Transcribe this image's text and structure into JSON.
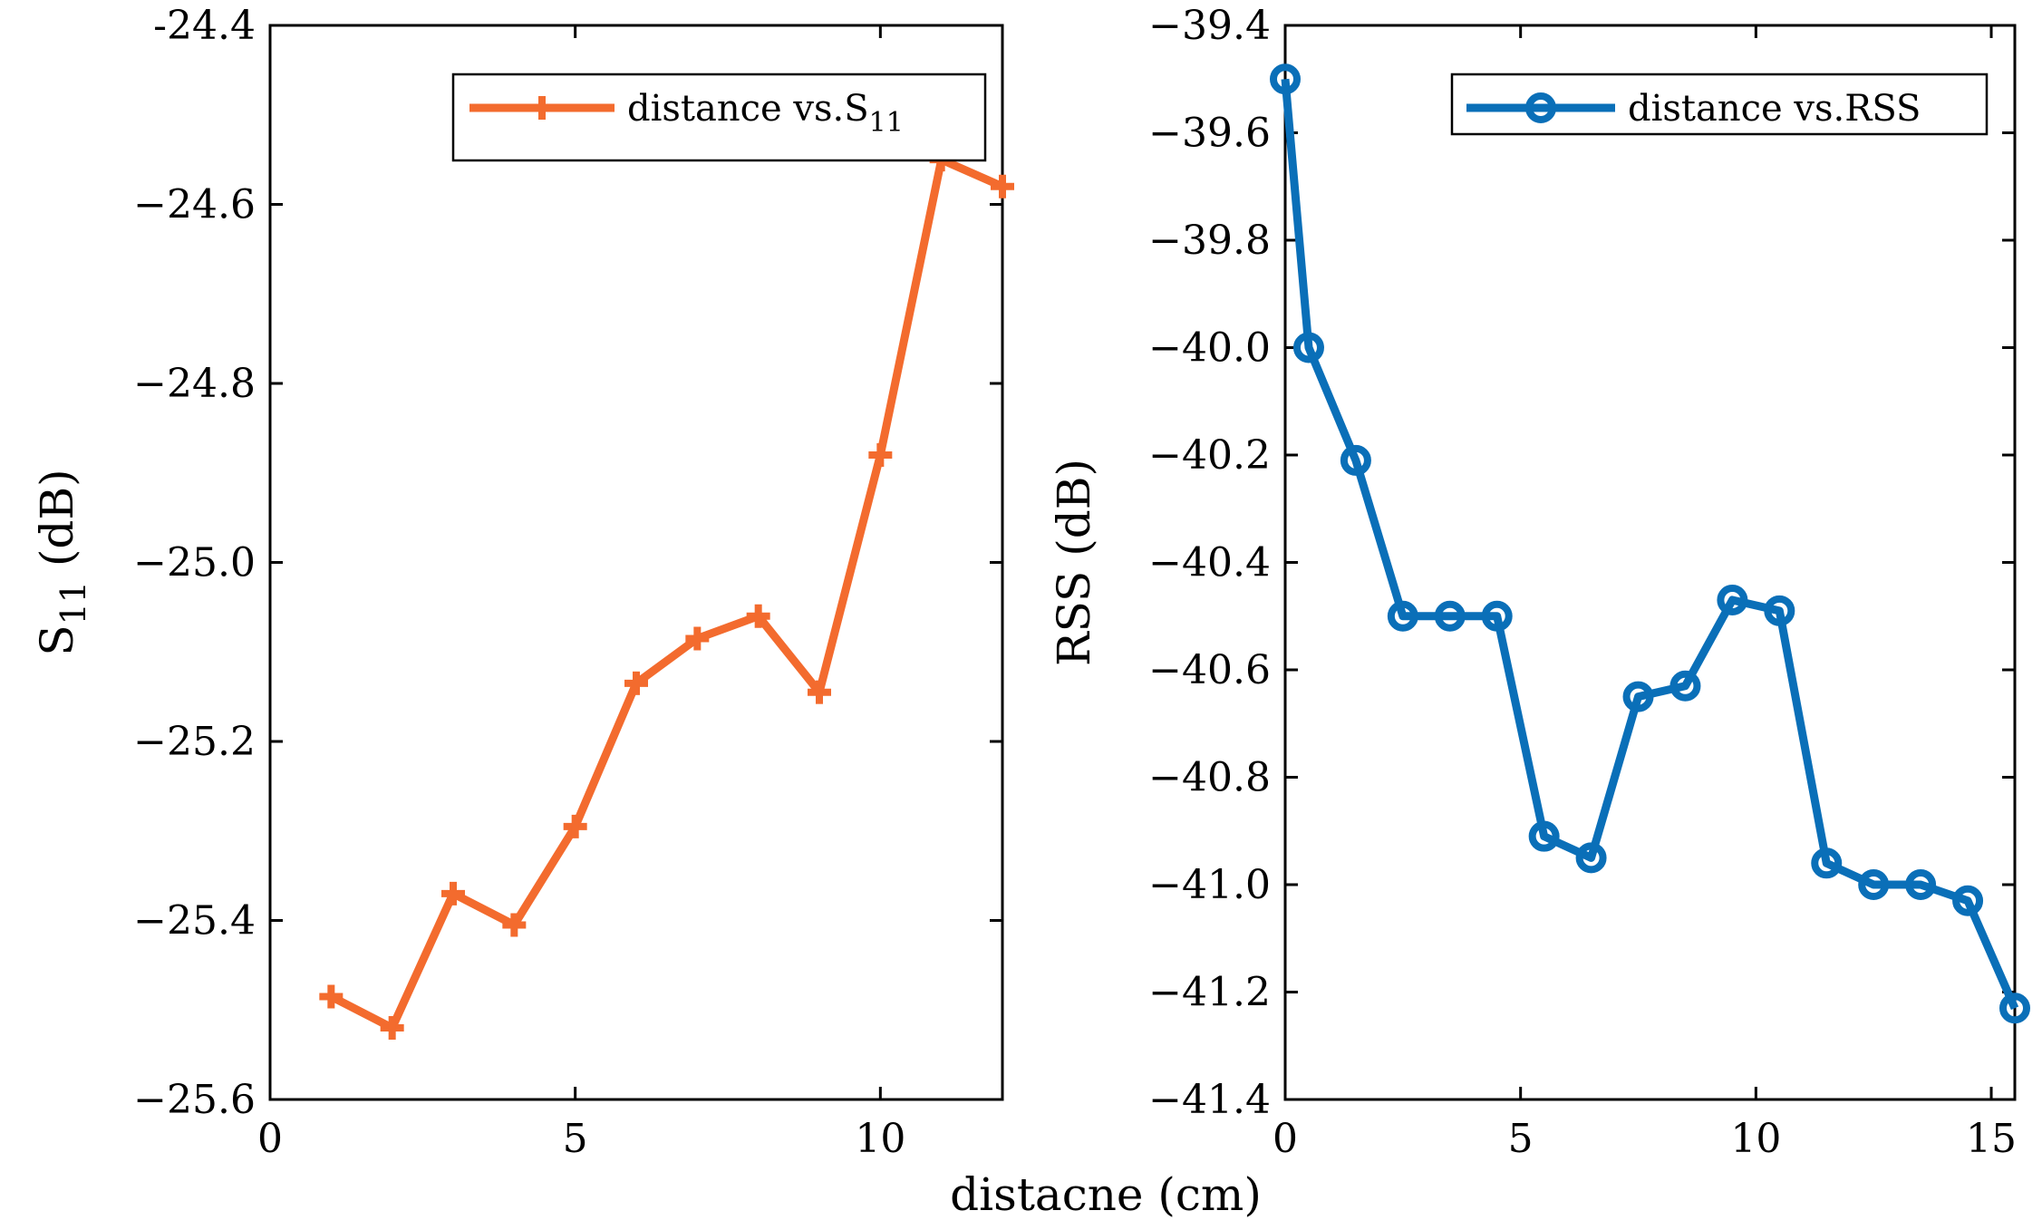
{
  "chart_data": [
    {
      "type": "line",
      "xlabel": "distacne (cm)",
      "ylabel": "S11 (dB)",
      "ylabel_main": "S",
      "ylabel_sub": "11",
      "ylabel_unit": " (dB)",
      "xlim": [
        0,
        12
      ],
      "ylim": [
        -25.6,
        -24.4
      ],
      "xticks": [
        0,
        5,
        10
      ],
      "yticks": [
        -25.6,
        -25.4,
        -25.2,
        -25.0,
        -24.8,
        -24.6,
        -24.4
      ],
      "xtick_labels": [
        "0",
        "5",
        "10"
      ],
      "ytick_labels": [
        "−25.6",
        "−25.4",
        "−25.2",
        "−25.0",
        "−24.8",
        "−24.6",
        "-24.4"
      ],
      "grid": false,
      "legend_position": "top-right",
      "series": [
        {
          "name": "distance vs.S11",
          "legend_main": "distance vs.S",
          "legend_sub": "11",
          "color": "#F36B2E",
          "marker": "plus",
          "x": [
            1,
            2,
            3,
            4,
            5,
            6,
            7,
            8,
            9,
            10,
            11,
            12
          ],
          "y": [
            -25.485,
            -25.52,
            -25.37,
            -25.405,
            -25.295,
            -25.135,
            -25.085,
            -25.06,
            -25.145,
            -24.88,
            -24.55,
            -24.58
          ]
        }
      ]
    },
    {
      "type": "line",
      "xlabel": "distacne (cm)",
      "ylabel": "RSS (dB)",
      "xlim": [
        0,
        15.5
      ],
      "ylim": [
        -41.4,
        -39.4
      ],
      "xticks": [
        0,
        5,
        10,
        15
      ],
      "yticks": [
        -41.4,
        -41.2,
        -41.0,
        -40.8,
        -40.6,
        -40.4,
        -40.2,
        -40.0,
        -39.8,
        -39.6,
        -39.4
      ],
      "xtick_labels": [
        "0",
        "5",
        "10",
        "15"
      ],
      "ytick_labels": [
        "−41.4",
        "−41.2",
        "−41.0",
        "−40.8",
        "−40.6",
        "−40.4",
        "−40.2",
        "−40.0",
        "−39.8",
        "−39.6",
        "−39.4"
      ],
      "grid": false,
      "legend_position": "top-right",
      "series": [
        {
          "name": "distance vs.RSS",
          "color": "#0A6FB8",
          "marker": "circle",
          "x": [
            0,
            0.5,
            1.5,
            2.5,
            3.5,
            4.5,
            5.5,
            6.5,
            7.5,
            8.5,
            9.5,
            10.5,
            11.5,
            12.5,
            13.5,
            14.5,
            15.5
          ],
          "y": [
            -39.5,
            -40.0,
            -40.21,
            -40.5,
            -40.5,
            -40.5,
            -40.91,
            -40.95,
            -40.65,
            -40.63,
            -40.47,
            -40.49,
            -40.96,
            -41.0,
            -41.0,
            -41.03,
            -41.23
          ]
        }
      ]
    }
  ]
}
